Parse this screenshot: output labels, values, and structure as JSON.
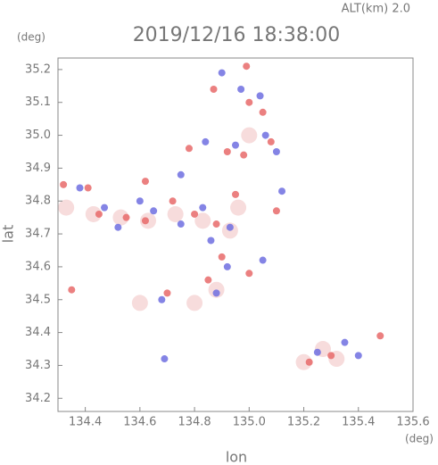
{
  "chart_data": {
    "type": "scatter",
    "title": "2019/12/16 18:38:00",
    "annotation": "ALT(km)  2.0",
    "y_unit": "(deg)",
    "x_unit": "(deg)",
    "x_label": "lon",
    "y_label": "lat",
    "xlim": [
      134.3,
      135.6
    ],
    "ylim": [
      34.16,
      35.235
    ],
    "xticks": [
      134.4,
      134.6,
      134.8,
      {
        "value": 135,
        "label": "135.0"
      },
      135.2,
      135.4,
      135.6
    ],
    "yticks": [
      34.2,
      34.3,
      34.4,
      34.5,
      34.6,
      34.7,
      34.8,
      34.9,
      {
        "value": 35,
        "label": "35.0"
      },
      35.1,
      35.2
    ],
    "series": [
      {
        "color": "#f6d6d6",
        "x": [
          134.33,
          134.43,
          134.53,
          134.63,
          134.73,
          134.83,
          134.93,
          135.27,
          135.32,
          135.2,
          134.88,
          134.8,
          134.6,
          135.0,
          134.96
        ],
        "y": [
          34.78,
          34.76,
          34.75,
          34.74,
          34.76,
          34.74,
          34.71,
          34.35,
          34.32,
          34.31,
          34.53,
          34.49,
          34.49,
          35.0,
          34.78
        ]
      },
      {
        "color": "#e86a6a",
        "x": [
          134.32,
          134.41,
          134.45,
          134.55,
          134.62,
          134.72,
          134.8,
          134.88,
          134.99,
          134.87,
          135.0,
          135.05,
          135.08,
          134.78,
          134.92,
          134.98,
          134.35,
          134.7,
          134.85,
          135.0,
          135.22,
          135.3,
          135.48,
          134.95,
          134.62,
          135.1,
          134.9
        ],
        "y": [
          34.85,
          34.84,
          34.76,
          34.75,
          34.74,
          34.8,
          34.76,
          34.73,
          35.21,
          35.14,
          35.1,
          35.07,
          34.98,
          34.96,
          34.95,
          34.94,
          34.53,
          34.52,
          34.56,
          34.58,
          34.31,
          34.33,
          34.39,
          34.82,
          34.86,
          34.77,
          34.63
        ]
      },
      {
        "color": "#6f6fe0",
        "x": [
          134.38,
          134.47,
          134.52,
          134.65,
          134.75,
          134.83,
          134.93,
          134.9,
          134.97,
          135.04,
          135.06,
          134.84,
          134.95,
          135.1,
          134.75,
          134.86,
          134.68,
          134.92,
          135.05,
          135.35,
          135.4,
          135.25,
          134.69,
          135.12,
          134.6,
          134.88
        ],
        "y": [
          34.84,
          34.78,
          34.72,
          34.77,
          34.73,
          34.78,
          34.72,
          35.19,
          35.14,
          35.12,
          35.0,
          34.98,
          34.97,
          34.95,
          34.88,
          34.68,
          34.5,
          34.6,
          34.62,
          34.37,
          34.33,
          34.34,
          34.32,
          34.83,
          34.8,
          34.52
        ]
      }
    ]
  }
}
